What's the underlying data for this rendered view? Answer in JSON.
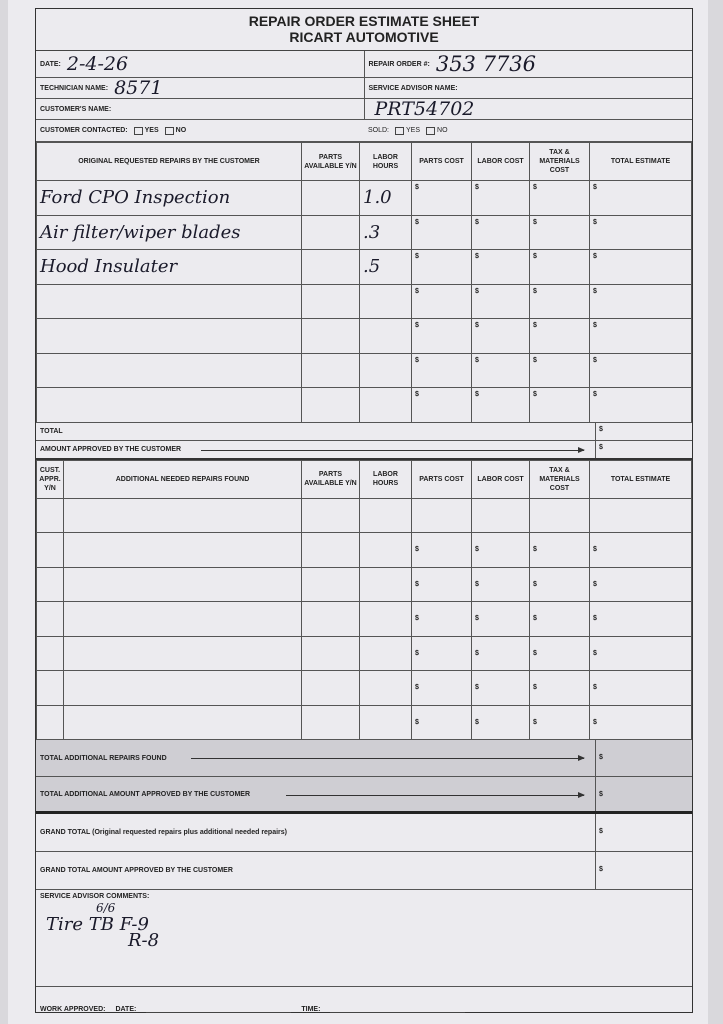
{
  "header": {
    "title": "REPAIR ORDER ESTIMATE SHEET",
    "company": "RICART AUTOMOTIVE"
  },
  "fields": {
    "date_label": "DATE:",
    "date_value": "2-4-26",
    "repair_order_label": "REPAIR ORDER #:",
    "repair_order_value": "353 7736",
    "technician_label": "TECHNICIAN NAME:",
    "technician_value": "8571",
    "service_advisor_label": "SERVICE ADVISOR NAME:",
    "customer_label": "CUSTOMER'S NAME:",
    "customer_value": "PRT54702",
    "contacted_label": "CUSTOMER CONTACTED:",
    "sold_label": "SOLD:",
    "yes": "YES",
    "no": "NO"
  },
  "original": {
    "headers": [
      "ORIGINAL REQUESTED REPAIRS BY THE CUSTOMER",
      "PARTS AVAILABLE Y/N",
      "LABOR HOURS",
      "PARTS COST",
      "LABOR COST",
      "TAX & MATERIALS COST",
      "TOTAL ESTIMATE"
    ],
    "rows": [
      {
        "desc": "Ford CPO Inspection",
        "hours": "1.0"
      },
      {
        "desc": "Air filter/wiper blades",
        "hours": ".3"
      },
      {
        "desc": "Hood Insulater",
        "hours": ".5"
      },
      {
        "desc": "",
        "hours": ""
      },
      {
        "desc": "",
        "hours": ""
      },
      {
        "desc": "",
        "hours": ""
      },
      {
        "desc": "",
        "hours": ""
      }
    ],
    "total_label": "TOTAL",
    "approved_label": "AMOUNT APPROVED BY THE CUSTOMER"
  },
  "additional": {
    "headers": [
      "CUST. APPR. Y/N",
      "ADDITIONAL NEEDED REPAIRS FOUND",
      "PARTS AVAILABLE Y/N",
      "LABOR HOURS",
      "PARTS COST",
      "LABOR COST",
      "TAX & MATERIALS COST",
      "TOTAL ESTIMATE"
    ],
    "row_count": 7
  },
  "dollar": "$",
  "totals": {
    "additional_found": "TOTAL ADDITIONAL REPAIRS FOUND",
    "additional_approved": "TOTAL ADDITIONAL AMOUNT APPROVED BY THE CUSTOMER",
    "grand_total": "GRAND TOTAL (Original requested repairs plus additional needed repairs)",
    "grand_approved": "GRAND TOTAL AMOUNT APPROVED BY THE CUSTOMER"
  },
  "comments": {
    "label": "SERVICE ADVISOR COMMENTS:",
    "line1": "Tire TB F-9",
    "line2": "R-8",
    "tire_note": "6/6"
  },
  "footer": {
    "work_approved": "WORK APPROVED:",
    "date": "DATE:",
    "time": "TIME:"
  }
}
